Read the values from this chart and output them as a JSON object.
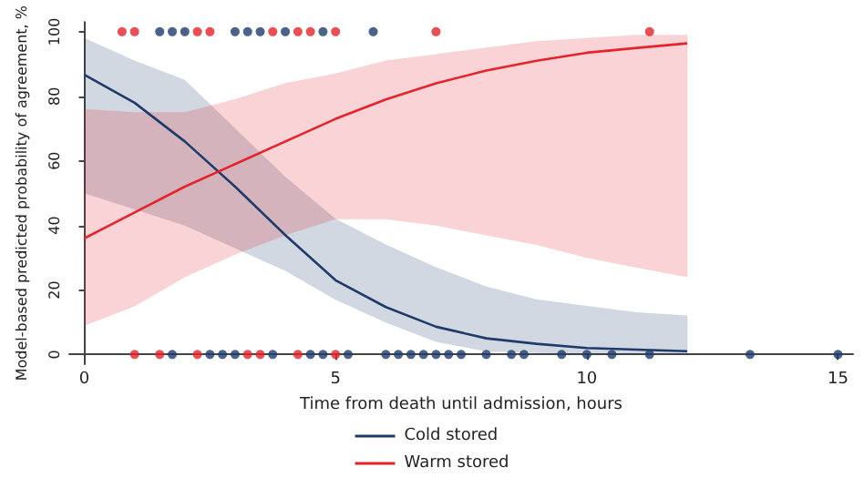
{
  "chart_data": {
    "type": "line",
    "xlabel": "Time from death until admission, hours",
    "ylabel": "Model-based predicted probability of agreement, %",
    "xlim": [
      -0.3,
      15.3
    ],
    "xticks": [
      0,
      5,
      10,
      15
    ],
    "ylim": [
      -3,
      103
    ],
    "yticks": [
      0,
      20,
      40,
      60,
      80,
      100
    ],
    "grid": false,
    "legend": "bottom",
    "series": [
      {
        "name": "Cold stored",
        "color": "#1f3b6b",
        "marker": "none",
        "x": [
          0,
          1,
          2,
          3,
          4,
          5,
          6,
          7,
          8,
          9,
          10,
          11,
          12
        ],
        "values": [
          86.7,
          78,
          66,
          52,
          37,
          23,
          14.7,
          8.6,
          5,
          3.3,
          2,
          1.5,
          1
        ],
        "lower": [
          50,
          45,
          40,
          33,
          26,
          17,
          10,
          4,
          1,
          0.5,
          0.2,
          0.1,
          0.1
        ],
        "upper": [
          98,
          91,
          85,
          70,
          55,
          42,
          34,
          27,
          21,
          17,
          15,
          13,
          12
        ]
      },
      {
        "name": "Warm stored",
        "color": "#e3242b",
        "marker": "none",
        "x": [
          0,
          1,
          2,
          3,
          4,
          5,
          6,
          7,
          8,
          9,
          10,
          11,
          12
        ],
        "values": [
          36,
          44,
          52,
          59,
          66,
          73,
          79,
          84,
          88,
          91,
          93.5,
          95,
          96.4
        ],
        "lower": [
          9,
          15,
          24,
          31,
          37,
          42,
          42,
          40,
          37,
          34,
          30,
          27,
          24
        ],
        "upper": [
          76,
          75,
          75,
          79,
          84,
          87,
          91,
          93,
          95,
          97,
          98,
          99,
          99
        ]
      },
      {
        "color": "#1f3b6b",
        "type": "scatter",
        "marker": "circle",
        "x": [
          1.5,
          1.75,
          2,
          3,
          3.25,
          3.5,
          4,
          4.75,
          5.75,
          1.75,
          2.5,
          2.75,
          3,
          3.75,
          4.5,
          4.75,
          5.25,
          6,
          6.25,
          6.5,
          6.75,
          7,
          7.25,
          7.5,
          8,
          8.5,
          8.75,
          9.5,
          10,
          10.5,
          11.25,
          13.25,
          15
        ],
        "values": [
          100,
          100,
          100,
          100,
          100,
          100,
          100,
          100,
          100,
          0,
          0,
          0,
          0,
          0,
          0,
          0,
          0,
          0,
          0,
          0,
          0,
          0,
          0,
          0,
          0,
          0,
          0,
          0,
          0,
          0,
          0,
          0,
          0
        ]
      },
      {
        "color": "#e3242b",
        "type": "scatter",
        "marker": "circle",
        "x": [
          0.75,
          1,
          2.25,
          2.5,
          3.75,
          4.25,
          4.5,
          5,
          7,
          11.25,
          1,
          1.5,
          2.25,
          3.25,
          3.5,
          4.25,
          5
        ],
        "values": [
          100,
          100,
          100,
          100,
          100,
          100,
          100,
          100,
          100,
          100,
          0,
          0,
          0,
          0,
          0,
          0,
          0
        ]
      }
    ]
  }
}
